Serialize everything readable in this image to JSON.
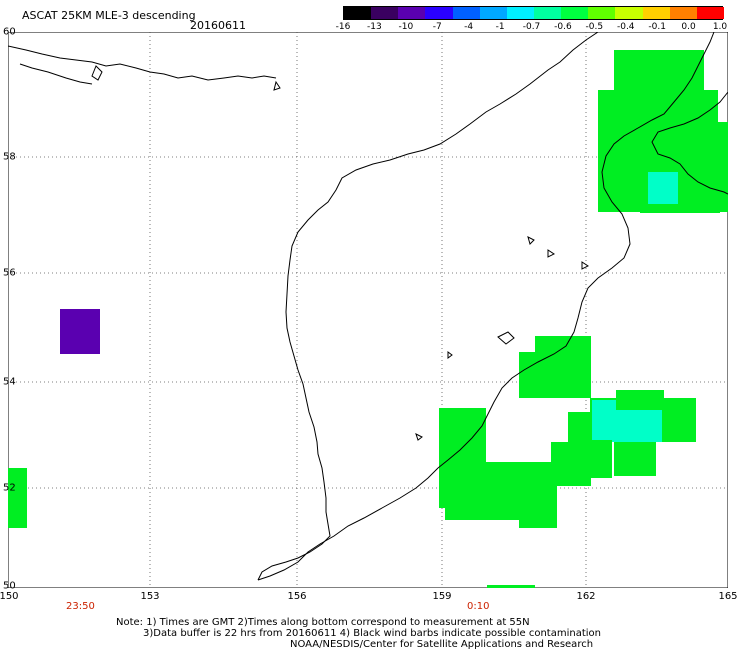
{
  "title": "ASCAT 25KM MLE-3 descending",
  "date": "20160611",
  "colorbar": {
    "labels": [
      "-16",
      "-13",
      "-10",
      "-7",
      "-4",
      "-1",
      "-0.7",
      "-0.6",
      "-0.5",
      "-0.4",
      "-0.1",
      "0.0",
      "1.0"
    ],
    "colors": [
      "#000000",
      "#3a0060",
      "#5a00b0",
      "#2a00ff",
      "#0060ff",
      "#00a8ff",
      "#00f0ff",
      "#00ffa0",
      "#00ff40",
      "#60ff00",
      "#c8ff00",
      "#ffd000",
      "#ff8000",
      "#ff0000"
    ]
  },
  "axes": {
    "x_ticks": [
      "150",
      "153",
      "156",
      "159",
      "162",
      "165"
    ],
    "y_ticks": [
      "60",
      "58",
      "56",
      "54",
      "52",
      "50"
    ],
    "time_labels": [
      "23:50",
      "0:10"
    ],
    "time_color": "#cc2200"
  },
  "notes": {
    "line1": "Note: 1) Times are GMT 2)Times along bottom correspond to measurement at 55N",
    "line2": "3)Data buffer is 22 hrs from 20160611 4) Black wind barbs indicate possible contamination",
    "line3": "NOAA/NESDIS/Center for Satellite Applications and Research"
  },
  "colors": {
    "mle_green": "#00ee22",
    "mle_cyan": "#00ffee",
    "mle_purple": "#5a00b0",
    "coastline": "#000000",
    "grid": "#555555"
  }
}
